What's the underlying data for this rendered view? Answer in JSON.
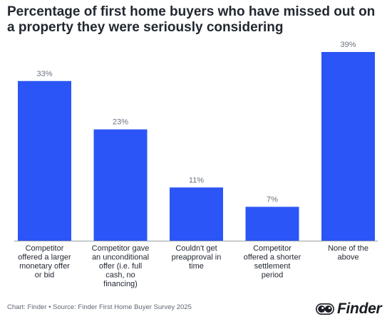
{
  "title": "Percentage of first home buyers who have missed out on a property they were seriously considering",
  "footer": "Chart: Finder • Source: Finder First Home Buyer Survey 2025",
  "brand": {
    "name": "Finder",
    "icon": "finder-eyes-icon"
  },
  "colors": {
    "bar": "#2b55f6",
    "label": "#6b7280",
    "text": "#1f2430",
    "axis": "#9aa0a6"
  },
  "chart_data": {
    "type": "bar",
    "categories": [
      "Competitor offered a larger monetary offer or bid",
      "Competitor gave an unconditional offer (i.e. full cash, no financing)",
      "Couldn't get preapproval in time",
      "Competitor offered a shorter settlement period",
      "None of the above"
    ],
    "category_lines": [
      [
        "Competitor",
        "offered a larger",
        "monetary offer",
        "or bid"
      ],
      [
        "Competitor gave",
        "an unconditional",
        "offer (i.e. full",
        "cash, no",
        "financing)"
      ],
      [
        "Couldn't get",
        "preapproval in",
        "time"
      ],
      [
        "Competitor",
        "offered a shorter",
        "settlement",
        "period"
      ],
      [
        "None of the",
        "above"
      ]
    ],
    "values": [
      33,
      23,
      11,
      7,
      39
    ],
    "value_labels": [
      "33%",
      "23%",
      "11%",
      "7%",
      "39%"
    ],
    "unit": "%",
    "ylim": [
      0,
      39
    ],
    "grid": false,
    "legend": "none"
  }
}
